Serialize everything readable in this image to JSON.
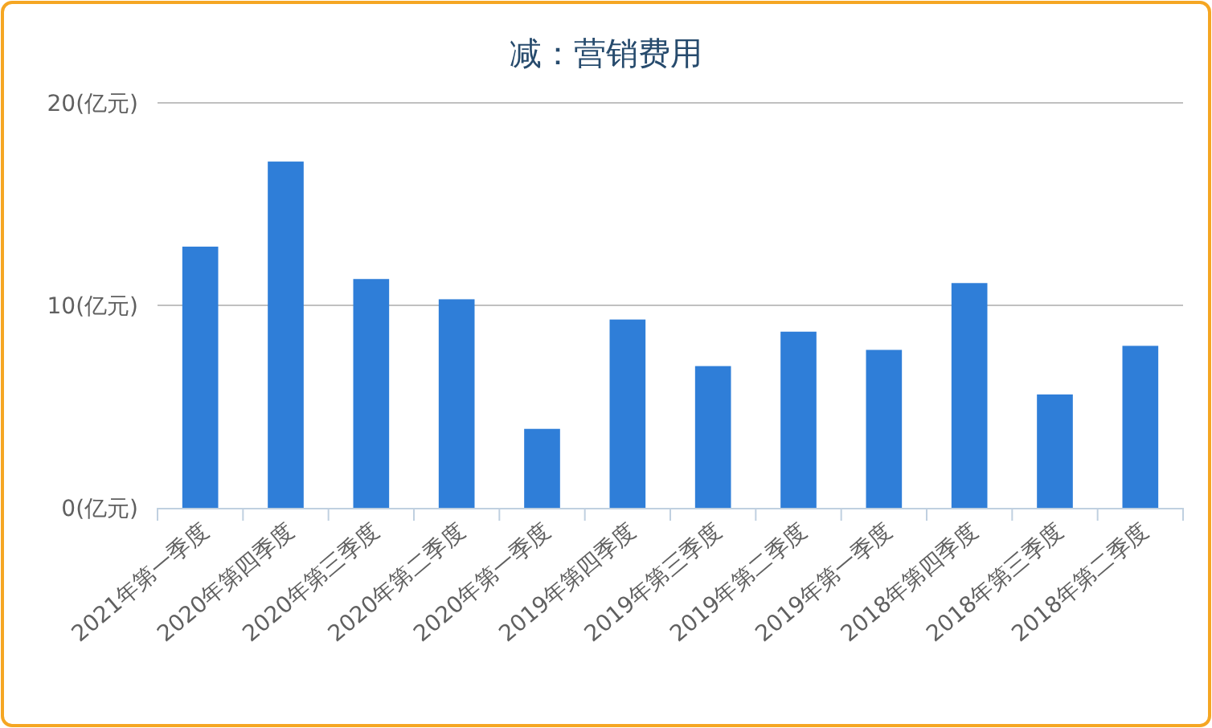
{
  "chart_data": {
    "type": "bar",
    "title": "减：营销费用",
    "categories": [
      "2021年第一季度",
      "2020年第四季度",
      "2020年第三季度",
      "2020年第二季度",
      "2020年第一季度",
      "2019年第四季度",
      "2019年第三季度",
      "2019年第二季度",
      "2019年第一季度",
      "2018年第四季度",
      "2018年第三季度",
      "2018年第二季度"
    ],
    "values": [
      12.9,
      17.1,
      11.3,
      10.3,
      3.9,
      9.3,
      7.0,
      8.7,
      7.8,
      11.1,
      5.6,
      8.0
    ],
    "color": "#2f7ed8",
    "ylim": [
      0,
      20
    ],
    "yticks": [
      {
        "value": 0,
        "label": "0(亿元)"
      },
      {
        "value": 10,
        "label": "10(亿元)"
      },
      {
        "value": 20,
        "label": "20(亿元)"
      }
    ],
    "grid": "y"
  }
}
